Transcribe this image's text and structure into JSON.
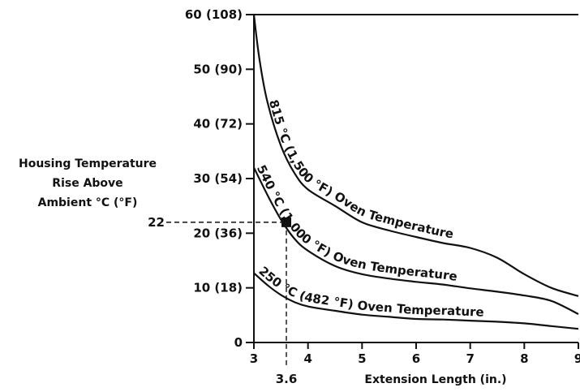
{
  "chart_data": {
    "type": "line",
    "xlabel": "Extension Length (in.)",
    "ylabel_lines": [
      "Housing Temperature",
      "Rise Above",
      "Ambient °C (°F)"
    ],
    "xlim": [
      3,
      9
    ],
    "ylim": [
      0,
      60
    ],
    "x_ticks": [
      "3",
      "4",
      "5",
      "6",
      "7",
      "8",
      "9"
    ],
    "y_ticks": [
      {
        "value": 0,
        "label": "0"
      },
      {
        "value": 10,
        "label": "10 (18)"
      },
      {
        "value": 20,
        "label": "20 (36)"
      },
      {
        "value": 30,
        "label": "30 (54)"
      },
      {
        "value": 40,
        "label": "40 (72)"
      },
      {
        "value": 50,
        "label": "50 (90)"
      },
      {
        "value": 60,
        "label": "60 (108)"
      }
    ],
    "top_line": true,
    "series": [
      {
        "name": "815 °C (1,500 °F) Oven Temperature",
        "x": [
          3.0,
          3.1,
          3.25,
          3.5,
          3.75,
          4.0,
          4.5,
          5.0,
          5.5,
          6.0,
          6.5,
          7.0,
          7.5,
          8.0,
          8.5,
          9.0
        ],
        "y": [
          60,
          52,
          44,
          36,
          31,
          28,
          25,
          22,
          20.5,
          19.3,
          18.2,
          17.3,
          15.5,
          12.5,
          10,
          8.5
        ]
      },
      {
        "name": "540 °C (1,000 °F) Oven Temperature",
        "x": [
          3.0,
          3.25,
          3.5,
          3.75,
          4.0,
          4.5,
          5.0,
          5.5,
          6.0,
          6.5,
          7.0,
          7.5,
          8.0,
          8.5,
          9.0
        ],
        "y": [
          32,
          27,
          22.5,
          19,
          16.8,
          14,
          12.5,
          11.7,
          11.1,
          10.6,
          9.9,
          9.3,
          8.6,
          7.6,
          5.2
        ]
      },
      {
        "name": "250 °C (482 °F) Oven Temperature",
        "x": [
          3.0,
          3.25,
          3.5,
          3.75,
          4.0,
          4.5,
          5.0,
          5.5,
          6.0,
          6.5,
          7.0,
          7.5,
          8.0,
          8.5,
          9.0
        ],
        "y": [
          12.7,
          10.5,
          8.7,
          7.4,
          6.6,
          5.8,
          5.1,
          4.7,
          4.3,
          4.2,
          4.0,
          3.8,
          3.5,
          3.0,
          2.5
        ]
      }
    ],
    "marker": {
      "x": 3.6,
      "y": 22,
      "x_label": "3.6",
      "y_label": "22"
    }
  }
}
